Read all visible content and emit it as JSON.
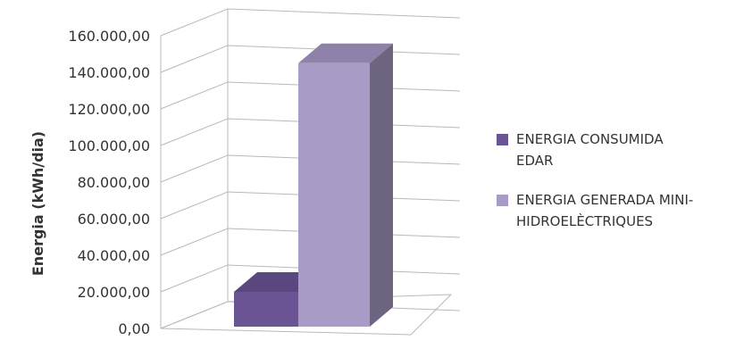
{
  "chart_data": {
    "type": "bar",
    "title": "",
    "xlabel": "",
    "ylabel": "Energia (kWh/dia)",
    "ylim": [
      0,
      160000
    ],
    "yticks": [
      0,
      20000,
      40000,
      60000,
      80000,
      100000,
      120000,
      140000,
      160000
    ],
    "ytick_labels": [
      "0,00",
      "20.000,00",
      "40.000,00",
      "60.000,00",
      "80.000,00",
      "100.000,00",
      "120.000,00",
      "140.000,00",
      "160.000,00"
    ],
    "grid": true,
    "legend_position": "right",
    "series": [
      {
        "name": "ENERGIA CONSUMIDA EDAR",
        "values": [
          20000
        ],
        "color": "#6b5494"
      },
      {
        "name": "ENERGIA GENERADA MINI-HIDROELÈCTRIQUES",
        "values": [
          145000
        ],
        "color": "#a89bc6"
      }
    ]
  },
  "legend": {
    "items": [
      {
        "lines": [
          "ENERGIA CONSUMIDA",
          "EDAR"
        ]
      },
      {
        "lines": [
          "ENERGIA GENERADA MINI-",
          "HIDROELÈCTRIQUES"
        ]
      }
    ]
  }
}
